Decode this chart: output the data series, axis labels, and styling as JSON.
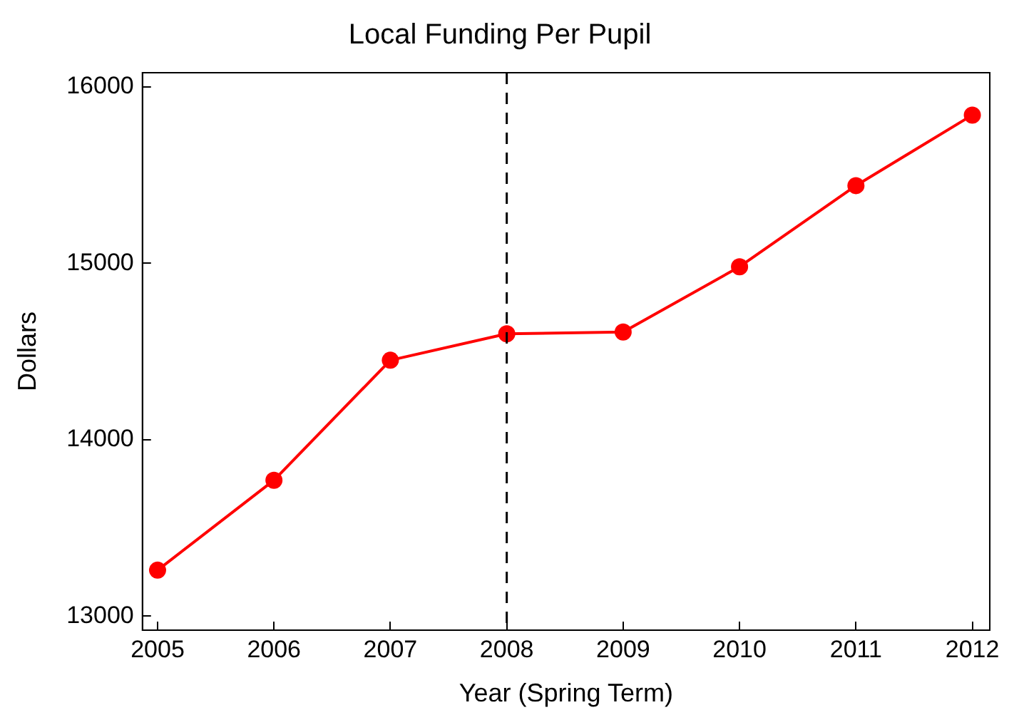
{
  "chart_data": {
    "type": "line",
    "title": "Local Funding Per Pupil",
    "xlabel": "Year (Spring Term)",
    "ylabel": "Dollars",
    "x": [
      2005,
      2006,
      2007,
      2008,
      2009,
      2010,
      2011,
      2012
    ],
    "series": [
      {
        "color": "#ff0000",
        "values": [
          13260,
          13770,
          14450,
          14600,
          14610,
          14980,
          15440,
          15840
        ]
      }
    ],
    "xlim": [
      2004.87,
      2012.15
    ],
    "xticks": [
      2005,
      2006,
      2007,
      2008,
      2009,
      2010,
      2011,
      2012
    ],
    "ylim": [
      12920,
      16080
    ],
    "yticks": [
      13000,
      14000,
      15000,
      16000
    ],
    "ref_lines": [
      {
        "axis": "x",
        "value": 2008,
        "color": "#000000",
        "line_style": "dashed"
      }
    ],
    "grid": false,
    "legend": false,
    "marker": "circle",
    "line_style": "solid"
  }
}
